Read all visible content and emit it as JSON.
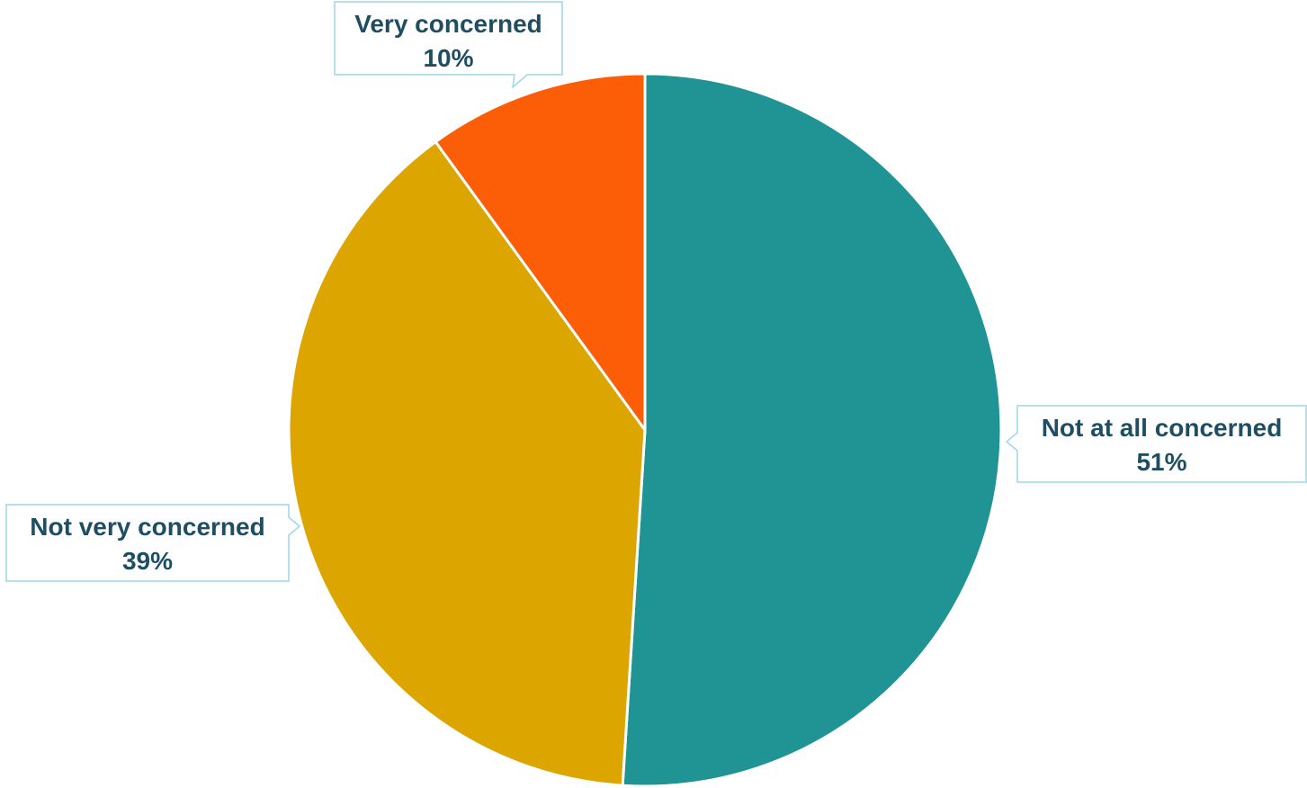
{
  "chart_data": {
    "type": "pie",
    "start_angle_deg": 0,
    "direction": "clockwise",
    "slices": [
      {
        "label": "Not at all concerned",
        "value": 51,
        "value_label": "51%",
        "color": "#209494"
      },
      {
        "label": "Not very concerned",
        "value": 39,
        "value_label": "39%",
        "color": "#dca500"
      },
      {
        "label": "Very concerned",
        "value": 10,
        "value_label": "10%",
        "color": "#fc5e08"
      }
    ],
    "legend": "none",
    "data_label_style": "callout"
  }
}
